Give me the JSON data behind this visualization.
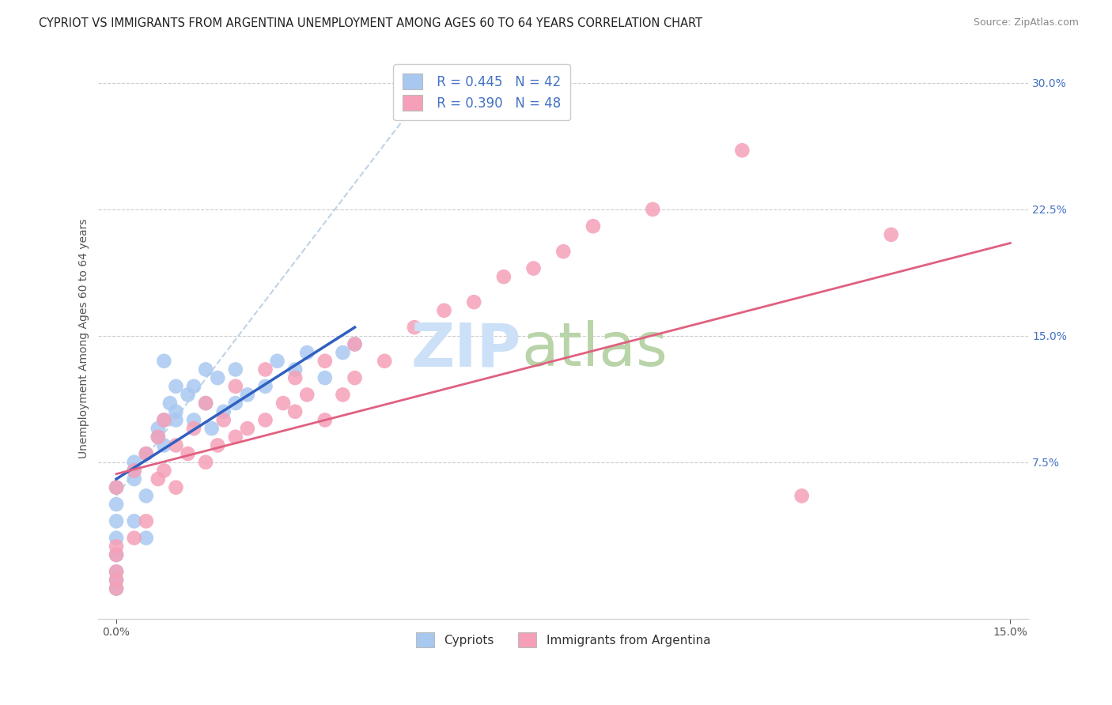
{
  "title": "CYPRIOT VS IMMIGRANTS FROM ARGENTINA UNEMPLOYMENT AMONG AGES 60 TO 64 YEARS CORRELATION CHART",
  "source": "Source: ZipAtlas.com",
  "ylabel": "Unemployment Among Ages 60 to 64 years",
  "xlim": [
    -0.003,
    0.153
  ],
  "ylim": [
    -0.018,
    0.315
  ],
  "xticks": [
    0.0,
    0.15
  ],
  "xticklabels": [
    "0.0%",
    "15.0%"
  ],
  "yticks": [
    0.075,
    0.15,
    0.225,
    0.3
  ],
  "yticklabels": [
    "7.5%",
    "15.0%",
    "22.5%",
    "30.0%"
  ],
  "cypriot_color": "#a8c8f0",
  "argentina_color": "#f5a0b8",
  "cypriot_line_color": "#3060c0",
  "argentina_line_color": "#e06080",
  "diag_color": "#b0c8e0",
  "watermark_zip_color": "#cce0f8",
  "watermark_atlas_color": "#b8d4a8",
  "cypriot_points_x": [
    0.0,
    0.0,
    0.0,
    0.0,
    0.0,
    0.0,
    0.003,
    0.003,
    0.003,
    0.005,
    0.005,
    0.007,
    0.007,
    0.008,
    0.008,
    0.009,
    0.01,
    0.01,
    0.01,
    0.012,
    0.013,
    0.013,
    0.015,
    0.015,
    0.016,
    0.017,
    0.018,
    0.02,
    0.02,
    0.022,
    0.025,
    0.027,
    0.03,
    0.032,
    0.035,
    0.038,
    0.04,
    0.0,
    0.0,
    0.003,
    0.005,
    0.008
  ],
  "cypriot_points_y": [
    0.0,
    0.005,
    0.01,
    0.02,
    0.03,
    0.04,
    0.065,
    0.07,
    0.075,
    0.055,
    0.08,
    0.09,
    0.095,
    0.085,
    0.1,
    0.11,
    0.1,
    0.105,
    0.12,
    0.115,
    0.1,
    0.12,
    0.13,
    0.11,
    0.095,
    0.125,
    0.105,
    0.11,
    0.13,
    0.115,
    0.12,
    0.135,
    0.13,
    0.14,
    0.125,
    0.14,
    0.145,
    0.05,
    0.06,
    0.04,
    0.03,
    0.135
  ],
  "argentina_points_x": [
    0.0,
    0.0,
    0.0,
    0.0,
    0.0,
    0.0,
    0.003,
    0.003,
    0.005,
    0.005,
    0.007,
    0.007,
    0.008,
    0.008,
    0.01,
    0.01,
    0.012,
    0.013,
    0.015,
    0.015,
    0.017,
    0.018,
    0.02,
    0.02,
    0.022,
    0.025,
    0.025,
    0.028,
    0.03,
    0.03,
    0.032,
    0.035,
    0.035,
    0.038,
    0.04,
    0.04,
    0.045,
    0.05,
    0.055,
    0.06,
    0.065,
    0.07,
    0.075,
    0.08,
    0.09,
    0.105,
    0.115,
    0.13
  ],
  "argentina_points_y": [
    0.0,
    0.005,
    0.01,
    0.02,
    0.025,
    0.06,
    0.03,
    0.07,
    0.04,
    0.08,
    0.065,
    0.09,
    0.07,
    0.1,
    0.06,
    0.085,
    0.08,
    0.095,
    0.075,
    0.11,
    0.085,
    0.1,
    0.09,
    0.12,
    0.095,
    0.1,
    0.13,
    0.11,
    0.105,
    0.125,
    0.115,
    0.1,
    0.135,
    0.115,
    0.125,
    0.145,
    0.135,
    0.155,
    0.165,
    0.17,
    0.185,
    0.19,
    0.2,
    0.215,
    0.225,
    0.26,
    0.055,
    0.21
  ],
  "cypriot_line": {
    "x0": 0.0,
    "y0": 0.065,
    "x1": 0.04,
    "y1": 0.155
  },
  "argentina_line": {
    "x0": 0.0,
    "y0": 0.068,
    "x1": 0.15,
    "y1": 0.205
  },
  "diag_line": {
    "x0": 0.0,
    "y0": 0.055,
    "x1": 0.055,
    "y1": 0.31
  }
}
